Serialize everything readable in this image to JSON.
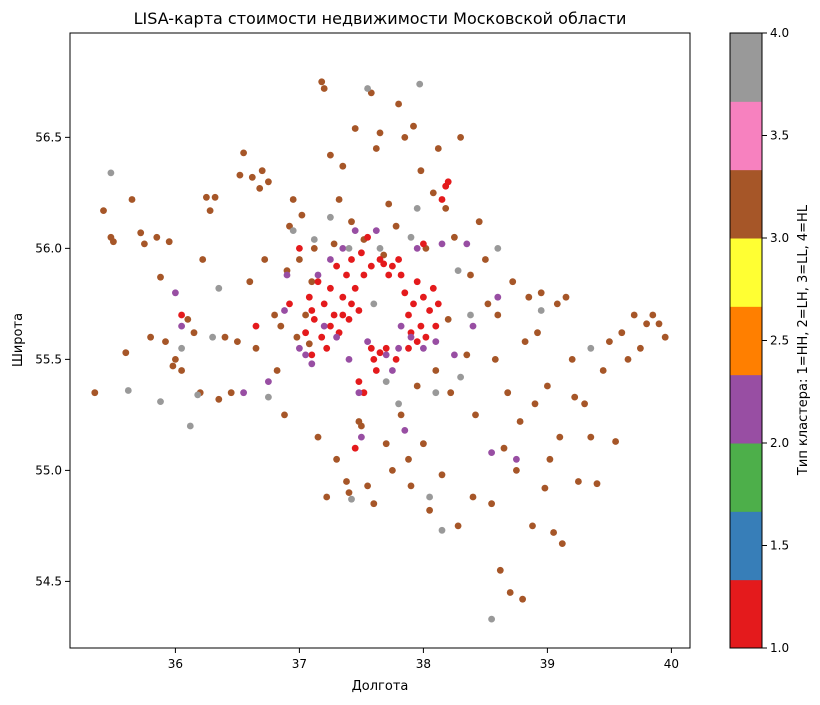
{
  "chart_data": {
    "type": "scatter",
    "title": "LISA-карта стоимости недвижимости Московской области",
    "xlabel": "Долгота",
    "ylabel": "Широта",
    "xlim": [
      35.15,
      40.15
    ],
    "ylim": [
      54.2,
      56.97
    ],
    "xticks": [
      36,
      37,
      38,
      39,
      40
    ],
    "xtick_labels": [
      "36",
      "37",
      "38",
      "39",
      "40"
    ],
    "yticks": [
      54.5,
      55.0,
      55.5,
      56.0,
      56.5
    ],
    "ytick_labels": [
      "54.5",
      "55.0",
      "55.5",
      "56.0",
      "56.5"
    ],
    "grid": false,
    "colorbar": {
      "label": "Тип кластера: 1=HH, 2=LH, 3=LL, 4=HL",
      "range": [
        1.0,
        4.0
      ],
      "ticks": [
        1.0,
        1.5,
        2.0,
        2.5,
        3.0,
        3.5,
        4.0
      ],
      "tick_labels": [
        "1.0",
        "1.5",
        "2.0",
        "2.5",
        "3.0",
        "3.5",
        "4.0"
      ],
      "colors": [
        "#e41a1c",
        "#377eb8",
        "#4daf4a",
        "#984ea3",
        "#ff7f00",
        "#ffff33",
        "#a65628",
        "#f781bf",
        "#999999"
      ]
    },
    "series": [
      {
        "cluster": 3,
        "color": "#a65628",
        "points": [
          [
            35.35,
            55.35
          ],
          [
            35.42,
            56.17
          ],
          [
            35.48,
            56.05
          ],
          [
            35.5,
            56.03
          ],
          [
            35.6,
            55.53
          ],
          [
            35.65,
            56.22
          ],
          [
            35.72,
            56.07
          ],
          [
            35.75,
            56.02
          ],
          [
            35.8,
            55.6
          ],
          [
            35.85,
            56.05
          ],
          [
            35.88,
            55.87
          ],
          [
            35.92,
            55.58
          ],
          [
            35.95,
            56.03
          ],
          [
            35.98,
            55.47
          ],
          [
            36.0,
            55.5
          ],
          [
            36.05,
            55.45
          ],
          [
            36.1,
            55.68
          ],
          [
            36.15,
            55.62
          ],
          [
            36.2,
            55.35
          ],
          [
            36.22,
            55.95
          ],
          [
            36.25,
            56.23
          ],
          [
            36.28,
            56.17
          ],
          [
            36.32,
            56.23
          ],
          [
            36.35,
            55.32
          ],
          [
            36.4,
            55.6
          ],
          [
            36.45,
            55.35
          ],
          [
            36.5,
            55.58
          ],
          [
            36.52,
            56.33
          ],
          [
            36.55,
            56.43
          ],
          [
            36.6,
            55.85
          ],
          [
            36.62,
            56.32
          ],
          [
            36.65,
            55.55
          ],
          [
            36.68,
            56.27
          ],
          [
            36.7,
            56.35
          ],
          [
            36.72,
            55.95
          ],
          [
            36.75,
            56.3
          ],
          [
            36.8,
            55.7
          ],
          [
            36.82,
            55.45
          ],
          [
            36.85,
            55.65
          ],
          [
            36.88,
            55.25
          ],
          [
            36.9,
            55.9
          ],
          [
            36.92,
            56.1
          ],
          [
            36.95,
            56.22
          ],
          [
            36.98,
            55.6
          ],
          [
            37.0,
            55.95
          ],
          [
            37.02,
            56.15
          ],
          [
            37.05,
            55.7
          ],
          [
            37.08,
            55.57
          ],
          [
            37.1,
            55.85
          ],
          [
            37.12,
            56.0
          ],
          [
            37.15,
            55.15
          ],
          [
            37.18,
            56.75
          ],
          [
            37.2,
            56.72
          ],
          [
            37.22,
            54.88
          ],
          [
            37.25,
            56.42
          ],
          [
            37.28,
            56.02
          ],
          [
            37.3,
            55.05
          ],
          [
            37.32,
            56.22
          ],
          [
            37.35,
            56.37
          ],
          [
            37.38,
            54.95
          ],
          [
            37.4,
            54.9
          ],
          [
            37.42,
            56.12
          ],
          [
            37.45,
            56.54
          ],
          [
            37.48,
            55.22
          ],
          [
            37.5,
            55.2
          ],
          [
            37.52,
            56.04
          ],
          [
            37.55,
            54.93
          ],
          [
            37.58,
            56.7
          ],
          [
            37.6,
            54.85
          ],
          [
            37.62,
            56.45
          ],
          [
            37.65,
            56.52
          ],
          [
            37.68,
            55.97
          ],
          [
            37.7,
            55.12
          ],
          [
            37.72,
            56.2
          ],
          [
            37.75,
            55.0
          ],
          [
            37.78,
            56.1
          ],
          [
            37.8,
            56.65
          ],
          [
            37.82,
            55.25
          ],
          [
            37.85,
            56.5
          ],
          [
            37.88,
            55.05
          ],
          [
            37.9,
            54.93
          ],
          [
            37.92,
            56.55
          ],
          [
            37.95,
            55.38
          ],
          [
            37.98,
            56.35
          ],
          [
            38.0,
            55.12
          ],
          [
            38.02,
            56.0
          ],
          [
            38.05,
            54.82
          ],
          [
            38.08,
            56.25
          ],
          [
            38.1,
            55.45
          ],
          [
            38.12,
            56.45
          ],
          [
            38.15,
            54.98
          ],
          [
            38.18,
            56.18
          ],
          [
            38.2,
            55.68
          ],
          [
            38.22,
            55.35
          ],
          [
            38.25,
            56.05
          ],
          [
            38.28,
            54.75
          ],
          [
            38.3,
            56.5
          ],
          [
            38.35,
            55.52
          ],
          [
            38.38,
            55.88
          ],
          [
            38.4,
            54.88
          ],
          [
            38.42,
            55.25
          ],
          [
            38.45,
            56.12
          ],
          [
            38.5,
            55.95
          ],
          [
            38.52,
            55.75
          ],
          [
            38.55,
            54.85
          ],
          [
            38.58,
            55.5
          ],
          [
            38.6,
            55.7
          ],
          [
            38.62,
            54.55
          ],
          [
            38.65,
            55.1
          ],
          [
            38.68,
            55.35
          ],
          [
            38.7,
            54.45
          ],
          [
            38.72,
            55.85
          ],
          [
            38.75,
            55.0
          ],
          [
            38.78,
            55.22
          ],
          [
            38.8,
            54.42
          ],
          [
            38.82,
            55.58
          ],
          [
            38.85,
            55.78
          ],
          [
            38.88,
            54.75
          ],
          [
            38.9,
            55.3
          ],
          [
            38.92,
            55.62
          ],
          [
            38.95,
            55.8
          ],
          [
            38.98,
            54.92
          ],
          [
            39.0,
            55.38
          ],
          [
            39.02,
            55.05
          ],
          [
            39.05,
            54.72
          ],
          [
            39.08,
            55.75
          ],
          [
            39.1,
            55.15
          ],
          [
            39.12,
            54.67
          ],
          [
            39.15,
            55.78
          ],
          [
            39.2,
            55.5
          ],
          [
            39.22,
            55.33
          ],
          [
            39.25,
            54.95
          ],
          [
            39.3,
            55.3
          ],
          [
            39.35,
            55.15
          ],
          [
            39.4,
            54.94
          ],
          [
            39.45,
            55.45
          ],
          [
            39.5,
            55.58
          ],
          [
            39.55,
            55.13
          ],
          [
            39.6,
            55.62
          ],
          [
            39.65,
            55.5
          ],
          [
            39.7,
            55.7
          ],
          [
            39.75,
            55.55
          ],
          [
            39.8,
            55.66
          ],
          [
            39.85,
            55.7
          ],
          [
            39.9,
            55.66
          ],
          [
            39.95,
            55.6
          ]
        ]
      },
      {
        "cluster": 1,
        "color": "#e41a1c",
        "points": [
          [
            36.05,
            55.7
          ],
          [
            36.65,
            55.65
          ],
          [
            36.92,
            55.75
          ],
          [
            37.0,
            56.0
          ],
          [
            37.05,
            55.62
          ],
          [
            37.08,
            55.78
          ],
          [
            37.1,
            55.52
          ],
          [
            37.12,
            55.68
          ],
          [
            37.15,
            55.85
          ],
          [
            37.18,
            55.6
          ],
          [
            37.2,
            55.75
          ],
          [
            37.22,
            55.55
          ],
          [
            37.25,
            55.82
          ],
          [
            37.28,
            55.7
          ],
          [
            37.3,
            55.92
          ],
          [
            37.32,
            55.62
          ],
          [
            37.35,
            55.78
          ],
          [
            37.38,
            55.88
          ],
          [
            37.4,
            55.68
          ],
          [
            37.42,
            55.95
          ],
          [
            37.45,
            55.82
          ],
          [
            37.48,
            55.72
          ],
          [
            37.5,
            55.98
          ],
          [
            37.52,
            55.88
          ],
          [
            37.55,
            56.05
          ],
          [
            37.58,
            55.55
          ],
          [
            37.6,
            55.5
          ],
          [
            37.62,
            55.45
          ],
          [
            37.65,
            55.53
          ],
          [
            37.68,
            55.93
          ],
          [
            37.7,
            55.55
          ],
          [
            37.72,
            55.88
          ],
          [
            37.75,
            55.92
          ],
          [
            37.78,
            55.5
          ],
          [
            37.8,
            55.95
          ],
          [
            37.82,
            55.88
          ],
          [
            37.85,
            55.8
          ],
          [
            37.88,
            55.7
          ],
          [
            37.9,
            55.62
          ],
          [
            37.92,
            55.75
          ],
          [
            37.95,
            55.85
          ],
          [
            37.98,
            55.65
          ],
          [
            38.0,
            55.78
          ],
          [
            38.02,
            55.6
          ],
          [
            38.05,
            55.72
          ],
          [
            38.08,
            55.82
          ],
          [
            38.1,
            55.65
          ],
          [
            38.12,
            55.75
          ],
          [
            38.15,
            56.22
          ],
          [
            38.18,
            56.28
          ],
          [
            38.2,
            56.3
          ],
          [
            37.48,
            55.4
          ],
          [
            37.52,
            55.35
          ],
          [
            37.45,
            55.1
          ],
          [
            38.0,
            56.02
          ],
          [
            37.1,
            55.72
          ],
          [
            37.25,
            55.65
          ],
          [
            37.35,
            55.7
          ],
          [
            37.42,
            55.75
          ],
          [
            37.58,
            55.92
          ],
          [
            37.65,
            55.95
          ],
          [
            37.88,
            55.55
          ],
          [
            37.95,
            55.58
          ]
        ]
      },
      {
        "cluster": 2,
        "color": "#984ea3",
        "points": [
          [
            36.0,
            55.8
          ],
          [
            36.05,
            55.65
          ],
          [
            36.55,
            55.35
          ],
          [
            36.75,
            55.4
          ],
          [
            36.88,
            55.72
          ],
          [
            36.9,
            55.88
          ],
          [
            37.0,
            55.55
          ],
          [
            37.05,
            55.52
          ],
          [
            37.1,
            55.48
          ],
          [
            37.15,
            55.88
          ],
          [
            37.2,
            55.65
          ],
          [
            37.25,
            55.95
          ],
          [
            37.3,
            55.6
          ],
          [
            37.35,
            56.0
          ],
          [
            37.45,
            56.08
          ],
          [
            37.48,
            55.35
          ],
          [
            37.5,
            55.15
          ],
          [
            37.55,
            55.58
          ],
          [
            37.62,
            56.08
          ],
          [
            37.7,
            55.52
          ],
          [
            37.75,
            55.45
          ],
          [
            37.8,
            55.55
          ],
          [
            37.82,
            55.65
          ],
          [
            37.85,
            55.18
          ],
          [
            37.9,
            55.6
          ],
          [
            37.95,
            56.0
          ],
          [
            38.0,
            55.55
          ],
          [
            38.1,
            55.58
          ],
          [
            38.15,
            56.02
          ],
          [
            38.25,
            55.52
          ],
          [
            38.35,
            56.02
          ],
          [
            38.55,
            55.08
          ],
          [
            38.6,
            55.78
          ],
          [
            38.75,
            55.05
          ],
          [
            37.4,
            55.5
          ],
          [
            38.4,
            55.65
          ]
        ]
      },
      {
        "cluster": 4,
        "color": "#999999",
        "points": [
          [
            35.48,
            56.34
          ],
          [
            35.62,
            55.36
          ],
          [
            35.88,
            55.31
          ],
          [
            36.05,
            55.55
          ],
          [
            36.12,
            55.2
          ],
          [
            36.18,
            55.34
          ],
          [
            36.3,
            55.6
          ],
          [
            36.35,
            55.82
          ],
          [
            36.75,
            55.33
          ],
          [
            36.95,
            56.08
          ],
          [
            37.12,
            56.04
          ],
          [
            37.25,
            56.14
          ],
          [
            37.4,
            56.0
          ],
          [
            37.42,
            54.87
          ],
          [
            37.55,
            56.72
          ],
          [
            37.6,
            55.75
          ],
          [
            37.7,
            55.4
          ],
          [
            37.8,
            55.3
          ],
          [
            37.9,
            56.05
          ],
          [
            37.95,
            56.18
          ],
          [
            37.97,
            56.74
          ],
          [
            38.05,
            54.88
          ],
          [
            38.1,
            55.35
          ],
          [
            38.15,
            54.73
          ],
          [
            38.28,
            55.9
          ],
          [
            38.38,
            55.7
          ],
          [
            38.55,
            54.33
          ],
          [
            38.6,
            56.0
          ],
          [
            38.95,
            55.72
          ],
          [
            39.35,
            55.55
          ],
          [
            38.3,
            55.42
          ],
          [
            37.65,
            56.0
          ]
        ]
      }
    ]
  }
}
